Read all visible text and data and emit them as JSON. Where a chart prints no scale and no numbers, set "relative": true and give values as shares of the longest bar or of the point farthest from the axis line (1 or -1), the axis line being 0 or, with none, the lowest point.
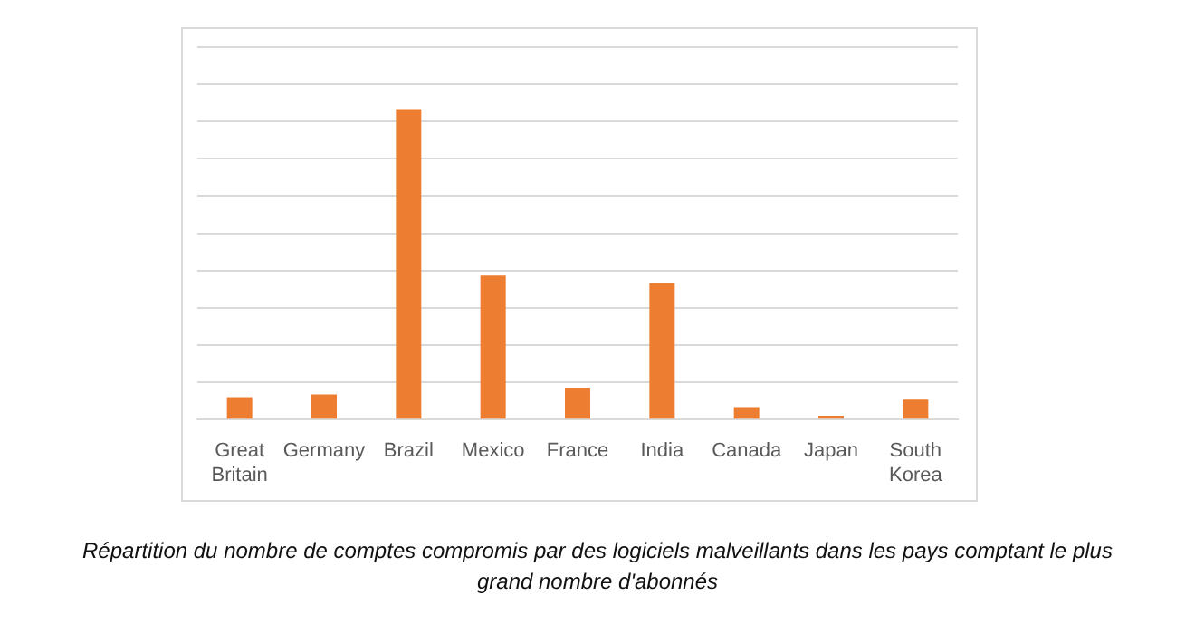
{
  "chart_data": {
    "type": "bar",
    "relative": true,
    "categories": [
      "Great Britain",
      "Germany",
      "Brazil",
      "Mexico",
      "France",
      "India",
      "Canada",
      "Japan",
      "South Korea"
    ],
    "values": [
      0.072,
      0.081,
      1,
      0.464,
      0.103,
      0.44,
      0.04,
      0.012,
      0.064
    ],
    "color": "#ed7d31",
    "grid": "y",
    "legend": false,
    "annotations": [
      "Répartition du nombre de comptes compromis par des logiciels malveillants dans les pays comptant le plus grand nombre d'abonnés"
    ]
  }
}
